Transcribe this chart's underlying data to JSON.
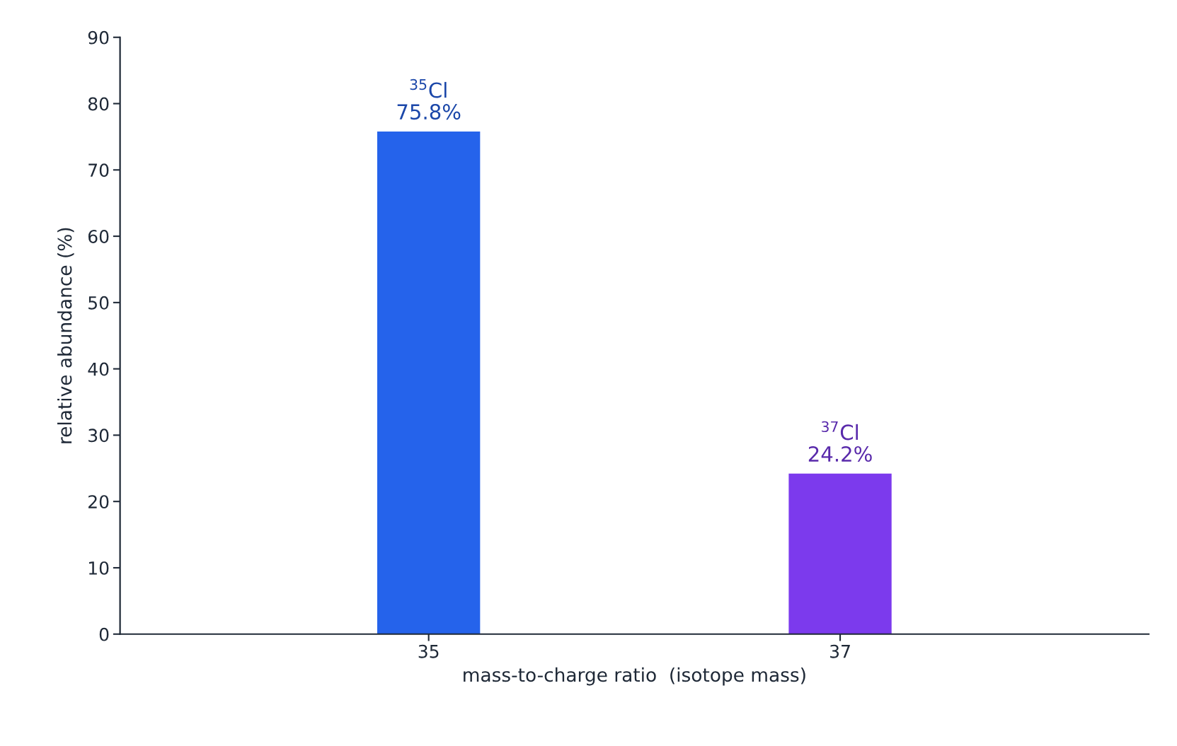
{
  "chart_data": {
    "type": "bar",
    "categories": [
      "35",
      "37"
    ],
    "values": [
      75.8,
      24.2
    ],
    "colors": [
      "#2563eb",
      "#7c3aed"
    ],
    "value_labels": [
      "$^{35}$Cl\n75.8%",
      "$^{37}$Cl\n24.2%"
    ],
    "xlabel": "mass-to-charge ratio  (isotope mass)",
    "ylabel": "relative abundance (%)",
    "ylim": [
      0,
      90
    ],
    "yticks": [
      0,
      10,
      20,
      30,
      40,
      50,
      60,
      70,
      80,
      90
    ],
    "grid": false,
    "legend": false
  }
}
